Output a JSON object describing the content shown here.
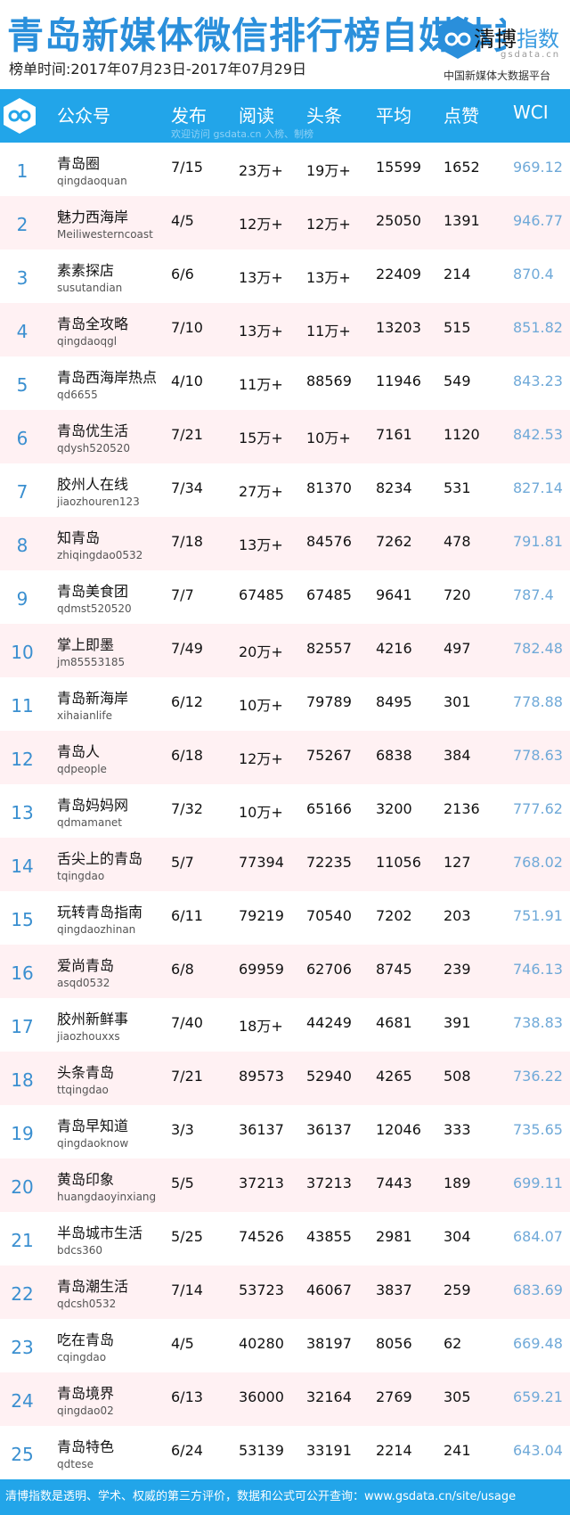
{
  "header": {
    "title": "青岛新媒体微信排行榜自媒体类",
    "date_range": "榜单时间:2017年07月23日-2017年07月29日",
    "brand_part1": "清博",
    "brand_part2": "指数",
    "brand_url": "gsdata.cn",
    "platform": "中国新媒体大数据平台"
  },
  "table": {
    "columns": [
      "公众号",
      "发布",
      "阅读",
      "头条",
      "平均",
      "点赞",
      "WCI"
    ],
    "watermark": "欢迎访问 gsdata.cn 入榜、制榜",
    "rows": [
      {
        "rank": "1",
        "name": "青岛圈",
        "handle": "qingdaoquan",
        "publish": "7/15",
        "read": "23万+",
        "headline": "19万+",
        "avg": "15599",
        "likes": "1652",
        "wci": "969.12"
      },
      {
        "rank": "2",
        "name": "魅力西海岸",
        "handle": "Meiliwesterncoast",
        "publish": "4/5",
        "read": "12万+",
        "headline": "12万+",
        "avg": "25050",
        "likes": "1391",
        "wci": "946.77"
      },
      {
        "rank": "3",
        "name": "素素探店",
        "handle": "susutandian",
        "publish": "6/6",
        "read": "13万+",
        "headline": "13万+",
        "avg": "22409",
        "likes": "214",
        "wci": "870.4"
      },
      {
        "rank": "4",
        "name": "青岛全攻略",
        "handle": "qingdaoqgl",
        "publish": "7/10",
        "read": "13万+",
        "headline": "11万+",
        "avg": "13203",
        "likes": "515",
        "wci": "851.82"
      },
      {
        "rank": "5",
        "name": "青岛西海岸热点",
        "handle": "qd6655",
        "publish": "4/10",
        "read": "11万+",
        "headline": "88569",
        "avg": "11946",
        "likes": "549",
        "wci": "843.23"
      },
      {
        "rank": "6",
        "name": "青岛优生活",
        "handle": "qdysh520520",
        "publish": "7/21",
        "read": "15万+",
        "headline": "10万+",
        "avg": "7161",
        "likes": "1120",
        "wci": "842.53"
      },
      {
        "rank": "7",
        "name": "胶州人在线",
        "handle": "jiaozhouren123",
        "publish": "7/34",
        "read": "27万+",
        "headline": "81370",
        "avg": "8234",
        "likes": "531",
        "wci": "827.14"
      },
      {
        "rank": "8",
        "name": "知青岛",
        "handle": "zhiqingdao0532",
        "publish": "7/18",
        "read": "13万+",
        "headline": "84576",
        "avg": "7262",
        "likes": "478",
        "wci": "791.81"
      },
      {
        "rank": "9",
        "name": "青岛美食团",
        "handle": "qdmst520520",
        "publish": "7/7",
        "read": "67485",
        "headline": "67485",
        "avg": "9641",
        "likes": "720",
        "wci": "787.4"
      },
      {
        "rank": "10",
        "name": "掌上即墨",
        "handle": "jm85553185",
        "publish": "7/49",
        "read": "20万+",
        "headline": "82557",
        "avg": "4216",
        "likes": "497",
        "wci": "782.48"
      },
      {
        "rank": "11",
        "name": "青岛新海岸",
        "handle": "xihaianlife",
        "publish": "6/12",
        "read": "10万+",
        "headline": "79789",
        "avg": "8495",
        "likes": "301",
        "wci": "778.88"
      },
      {
        "rank": "12",
        "name": "青岛人",
        "handle": "qdpeople",
        "publish": "6/18",
        "read": "12万+",
        "headline": "75267",
        "avg": "6838",
        "likes": "384",
        "wci": "778.63"
      },
      {
        "rank": "13",
        "name": "青岛妈妈网",
        "handle": "qdmamanet",
        "publish": "7/32",
        "read": "10万+",
        "headline": "65166",
        "avg": "3200",
        "likes": "2136",
        "wci": "777.62"
      },
      {
        "rank": "14",
        "name": "舌尖上的青岛",
        "handle": "tqingdao",
        "publish": "5/7",
        "read": "77394",
        "headline": "72235",
        "avg": "11056",
        "likes": "127",
        "wci": "768.02"
      },
      {
        "rank": "15",
        "name": "玩转青岛指南",
        "handle": "qingdaozhinan",
        "publish": "6/11",
        "read": "79219",
        "headline": "70540",
        "avg": "7202",
        "likes": "203",
        "wci": "751.91"
      },
      {
        "rank": "16",
        "name": "爱尚青岛",
        "handle": "asqd0532",
        "publish": "6/8",
        "read": "69959",
        "headline": "62706",
        "avg": "8745",
        "likes": "239",
        "wci": "746.13"
      },
      {
        "rank": "17",
        "name": "胶州新鲜事",
        "handle": "jiaozhouxxs",
        "publish": "7/40",
        "read": "18万+",
        "headline": "44249",
        "avg": "4681",
        "likes": "391",
        "wci": "738.83"
      },
      {
        "rank": "18",
        "name": "头条青岛",
        "handle": "ttqingdao",
        "publish": "7/21",
        "read": "89573",
        "headline": "52940",
        "avg": "4265",
        "likes": "508",
        "wci": "736.22"
      },
      {
        "rank": "19",
        "name": "青岛早知道",
        "handle": "qingdaoknow",
        "publish": "3/3",
        "read": "36137",
        "headline": "36137",
        "avg": "12046",
        "likes": "333",
        "wci": "735.65"
      },
      {
        "rank": "20",
        "name": "黄岛印象",
        "handle": "huangdaoyinxiang",
        "publish": "5/5",
        "read": "37213",
        "headline": "37213",
        "avg": "7443",
        "likes": "189",
        "wci": "699.11"
      },
      {
        "rank": "21",
        "name": "半岛城市生活",
        "handle": "bdcs360",
        "publish": "5/25",
        "read": "74526",
        "headline": "43855",
        "avg": "2981",
        "likes": "304",
        "wci": "684.07"
      },
      {
        "rank": "22",
        "name": "青岛潮生活",
        "handle": "qdcsh0532",
        "publish": "7/14",
        "read": "53723",
        "headline": "46067",
        "avg": "3837",
        "likes": "259",
        "wci": "683.69"
      },
      {
        "rank": "23",
        "name": "吃在青岛",
        "handle": "cqingdao",
        "publish": "4/5",
        "read": "40280",
        "headline": "38197",
        "avg": "8056",
        "likes": "62",
        "wci": "669.48"
      },
      {
        "rank": "24",
        "name": "青岛境界",
        "handle": "qingdao02",
        "publish": "6/13",
        "read": "36000",
        "headline": "32164",
        "avg": "2769",
        "likes": "305",
        "wci": "659.21"
      },
      {
        "rank": "25",
        "name": "青岛特色",
        "handle": "qdtese",
        "publish": "6/24",
        "read": "53139",
        "headline": "33191",
        "avg": "2214",
        "likes": "241",
        "wci": "643.04"
      }
    ]
  },
  "footer": {
    "text": "清博指数是透明、学术、权威的第三方评价，数据和公式可公开查询：www.gsdata.cn/site/usage"
  },
  "colors": {
    "accent": "#22a5e9",
    "title": "#2a8fdb",
    "alt_row": "#fff1f3",
    "wci": "#6fa9d8"
  }
}
